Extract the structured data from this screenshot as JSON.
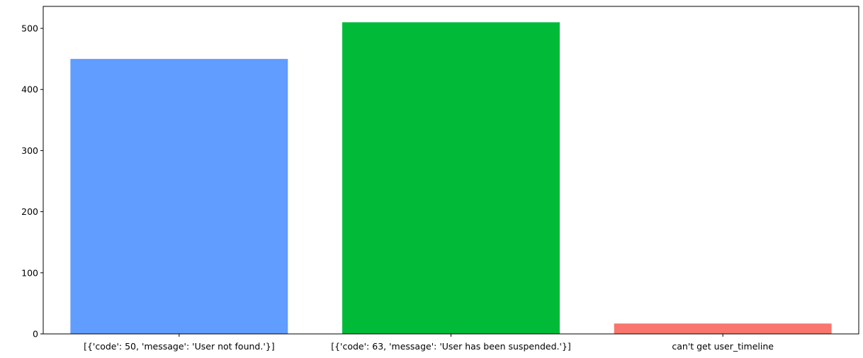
{
  "chart_data": {
    "type": "bar",
    "categories": [
      "[{'code': 50, 'message': 'User not found.'}]",
      "[{'code': 63, 'message': 'User has been suspended.'}]",
      "can't get user_timeline"
    ],
    "values": [
      450,
      510,
      17
    ],
    "colors": [
      "#619cff",
      "#00ba38",
      "#f8766d"
    ],
    "title": "",
    "xlabel": "",
    "ylabel": "",
    "ylim": [
      0,
      536
    ],
    "yticks": [
      0,
      100,
      200,
      300,
      400,
      500
    ],
    "grid": false
  }
}
